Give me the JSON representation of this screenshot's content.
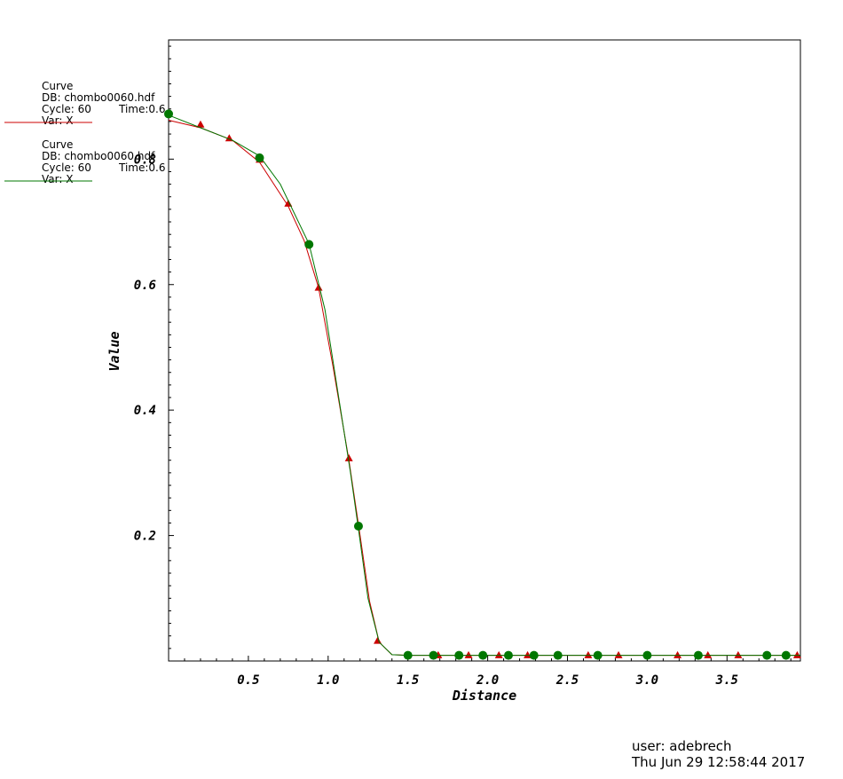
{
  "chart_data": {
    "type": "line",
    "xlabel": "Distance",
    "ylabel": "Value",
    "xlim": [
      0,
      3.96
    ],
    "ylim": [
      0,
      0.99
    ],
    "x_ticks": [
      0.5,
      1.0,
      1.5,
      2.0,
      2.5,
      3.0,
      3.5
    ],
    "x_tick_labels": [
      "0.5",
      "1.0",
      "1.5",
      "2.0",
      "2.5",
      "3.0",
      "3.5"
    ],
    "y_ticks": [
      0.2,
      0.4,
      0.6,
      0.8
    ],
    "y_tick_labels": [
      "0.2",
      "0.4",
      "0.6",
      "0.8"
    ],
    "series": [
      {
        "color": "#cc0000",
        "marker": "triangle",
        "curve": [
          [
            0,
            0.862
          ],
          [
            0.2,
            0.85
          ],
          [
            0.4,
            0.83
          ],
          [
            0.57,
            0.795
          ],
          [
            0.75,
            0.725
          ],
          [
            0.85,
            0.67
          ],
          [
            0.94,
            0.595
          ],
          [
            1.03,
            0.47
          ],
          [
            1.13,
            0.32
          ],
          [
            1.2,
            0.2
          ],
          [
            1.26,
            0.095
          ],
          [
            1.32,
            0.03
          ],
          [
            1.4,
            0.01
          ],
          [
            1.5,
            0.009
          ],
          [
            3.96,
            0.009
          ]
        ],
        "markers_x": [
          0.2,
          0.38,
          0.57,
          0.75,
          0.94,
          1.13,
          1.31,
          1.69,
          1.88,
          2.07,
          2.25,
          2.63,
          2.82,
          3.19,
          3.38,
          3.57,
          3.94
        ],
        "markers_y": [
          0.856,
          0.834,
          0.8,
          0.73,
          0.596,
          0.324,
          0.033,
          0.01,
          0.01,
          0.01,
          0.01,
          0.01,
          0.01,
          0.01,
          0.01,
          0.01,
          0.01
        ]
      },
      {
        "color": "#007700",
        "marker": "circle",
        "curve": [
          [
            0,
            0.87
          ],
          [
            0.2,
            0.85
          ],
          [
            0.4,
            0.83
          ],
          [
            0.57,
            0.805
          ],
          [
            0.7,
            0.76
          ],
          [
            0.88,
            0.665
          ],
          [
            0.98,
            0.56
          ],
          [
            1.06,
            0.43
          ],
          [
            1.14,
            0.3
          ],
          [
            1.19,
            0.21
          ],
          [
            1.25,
            0.1
          ],
          [
            1.32,
            0.03
          ],
          [
            1.4,
            0.01
          ],
          [
            1.5,
            0.009
          ],
          [
            3.96,
            0.009
          ]
        ],
        "markers_x": [
          0,
          0.57,
          0.88,
          1.19,
          1.5,
          1.66,
          1.82,
          1.97,
          2.13,
          2.29,
          2.44,
          2.69,
          3.0,
          3.32,
          3.75,
          3.87
        ],
        "markers_y": [
          0.872,
          0.802,
          0.664,
          0.215,
          0.009,
          0.009,
          0.009,
          0.009,
          0.009,
          0.009,
          0.009,
          0.009,
          0.009,
          0.009,
          0.009,
          0.009
        ]
      }
    ]
  },
  "legend": [
    {
      "title": "Curve",
      "db": "DB: chombo0060.hdf",
      "cycle": "Cycle: 60",
      "time": "Time:0.6",
      "var": "Var: X"
    },
    {
      "title": "Curve",
      "db": "DB: chombo0060.hdf",
      "cycle": "Cycle: 60",
      "time": "Time:0.6",
      "var": "Var: X"
    }
  ],
  "footer": {
    "user": "user: adebrech",
    "date": "Thu Jun 29 12:58:44 2017"
  }
}
